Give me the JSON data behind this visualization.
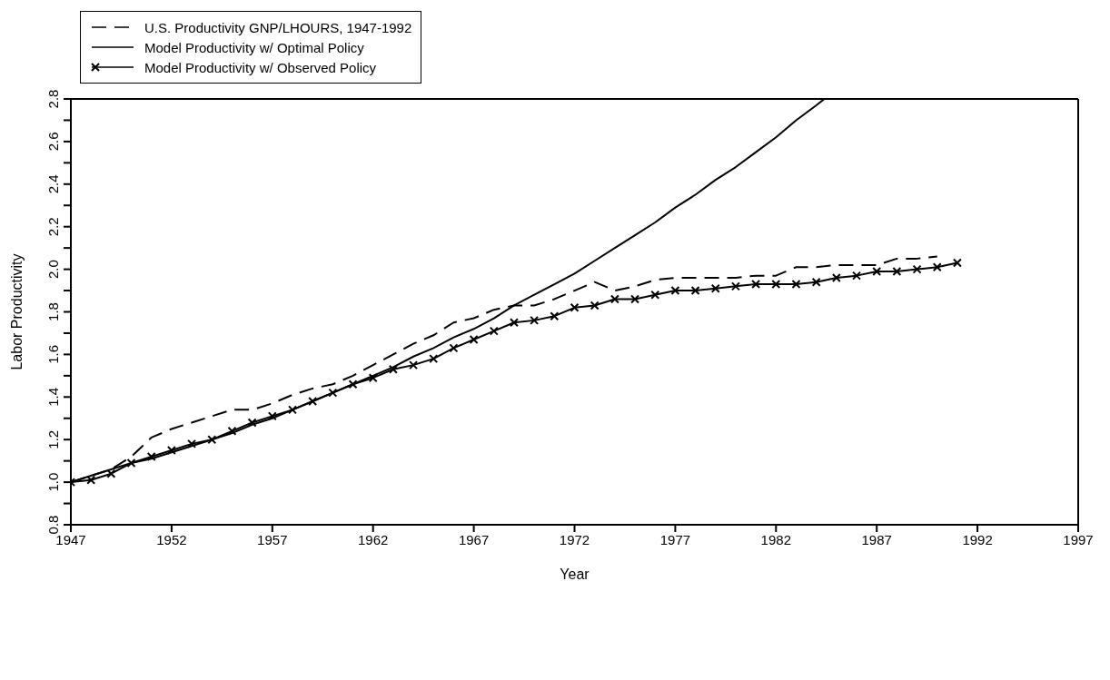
{
  "chart_data": {
    "type": "line",
    "xlabel": "Year",
    "ylabel": "Labor Productivity",
    "xlim": [
      1947,
      1997
    ],
    "xticks": [
      1947,
      1952,
      1957,
      1962,
      1967,
      1972,
      1977,
      1982,
      1987,
      1992,
      1997
    ],
    "ylim": [
      0.8,
      2.8
    ],
    "yticks": [
      0.8,
      {
        "value": 0.9,
        "label": null
      },
      {
        "value": 1.0,
        "label": "1.0"
      },
      {
        "value": 1.1,
        "label": null
      },
      1.2,
      {
        "value": 1.3,
        "label": null
      },
      1.4,
      {
        "value": 1.5,
        "label": null
      },
      1.6,
      {
        "value": 1.7,
        "label": null
      },
      1.8,
      {
        "value": 1.9,
        "label": null
      },
      {
        "value": 2.0,
        "label": "2.0"
      },
      {
        "value": 2.1,
        "label": null
      },
      2.2,
      {
        "value": 2.3,
        "label": null
      },
      2.4,
      {
        "value": 2.5,
        "label": null
      },
      2.6,
      {
        "value": 2.7,
        "label": null
      },
      2.8
    ],
    "legend": "top left",
    "marker": "none",
    "series": [
      {
        "name": "U.S. Productivity GNP/LHOURS, 1947-1992",
        "color": "#000000",
        "line_style": "dashed",
        "x": [
          1947,
          1948,
          1949,
          1950,
          1951,
          1952,
          1953,
          1954,
          1955,
          1956,
          1957,
          1958,
          1959,
          1960,
          1961,
          1962,
          1963,
          1964,
          1965,
          1966,
          1967,
          1968,
          1969,
          1970,
          1971,
          1972,
          1973,
          1974,
          1975,
          1976,
          1977,
          1978,
          1979,
          1980,
          1981,
          1982,
          1983,
          1984,
          1985,
          1986,
          1987,
          1988,
          1989,
          1990
        ],
        "values": [
          1.0,
          1.03,
          1.06,
          1.12,
          1.21,
          1.25,
          1.28,
          1.31,
          1.34,
          1.34,
          1.37,
          1.41,
          1.44,
          1.46,
          1.5,
          1.55,
          1.6,
          1.65,
          1.69,
          1.75,
          1.77,
          1.81,
          1.83,
          1.83,
          1.86,
          1.9,
          1.94,
          1.9,
          1.92,
          1.95,
          1.96,
          1.96,
          1.96,
          1.96,
          1.97,
          1.97,
          2.01,
          2.01,
          2.02,
          2.02,
          2.02,
          2.05,
          2.05,
          2.06
        ]
      },
      {
        "name": "Model Productivity w/ Optimal Policy",
        "color": "#000000",
        "line_style": "solid",
        "x": [
          1947,
          1948,
          1949,
          1950,
          1951,
          1952,
          1953,
          1954,
          1955,
          1956,
          1957,
          1958,
          1959,
          1960,
          1961,
          1962,
          1963,
          1964,
          1965,
          1966,
          1967,
          1968,
          1969,
          1970,
          1971,
          1972,
          1973,
          1974,
          1975,
          1976,
          1977,
          1978,
          1979,
          1980,
          1981,
          1982,
          1983,
          1984,
          1984.4
        ],
        "values": [
          1.0,
          1.03,
          1.06,
          1.09,
          1.11,
          1.14,
          1.17,
          1.2,
          1.23,
          1.27,
          1.3,
          1.34,
          1.38,
          1.42,
          1.46,
          1.5,
          1.54,
          1.59,
          1.63,
          1.68,
          1.72,
          1.77,
          1.83,
          1.88,
          1.93,
          1.98,
          2.04,
          2.1,
          2.16,
          2.22,
          2.29,
          2.35,
          2.42,
          2.48,
          2.55,
          2.62,
          2.7,
          2.77,
          2.8
        ]
      },
      {
        "name": "Model Productivity w/ Observed Policy",
        "color": "#000000",
        "line_style": "solid",
        "marker": "cross",
        "x": [
          1947,
          1948,
          1949,
          1950,
          1951,
          1952,
          1953,
          1954,
          1955,
          1956,
          1957,
          1958,
          1959,
          1960,
          1961,
          1962,
          1963,
          1964,
          1965,
          1966,
          1967,
          1968,
          1969,
          1970,
          1971,
          1972,
          1973,
          1974,
          1975,
          1976,
          1977,
          1978,
          1979,
          1980,
          1981,
          1982,
          1983,
          1984,
          1985,
          1986,
          1987,
          1988,
          1989,
          1990,
          1991
        ],
        "values": [
          1.0,
          1.01,
          1.04,
          1.09,
          1.12,
          1.15,
          1.18,
          1.2,
          1.24,
          1.28,
          1.31,
          1.34,
          1.38,
          1.42,
          1.46,
          1.49,
          1.53,
          1.55,
          1.58,
          1.63,
          1.67,
          1.71,
          1.75,
          1.76,
          1.78,
          1.82,
          1.83,
          1.86,
          1.86,
          1.88,
          1.9,
          1.9,
          1.91,
          1.92,
          1.93,
          1.93,
          1.93,
          1.94,
          1.96,
          1.97,
          1.99,
          1.99,
          2.0,
          2.01,
          2.03
        ]
      }
    ]
  }
}
